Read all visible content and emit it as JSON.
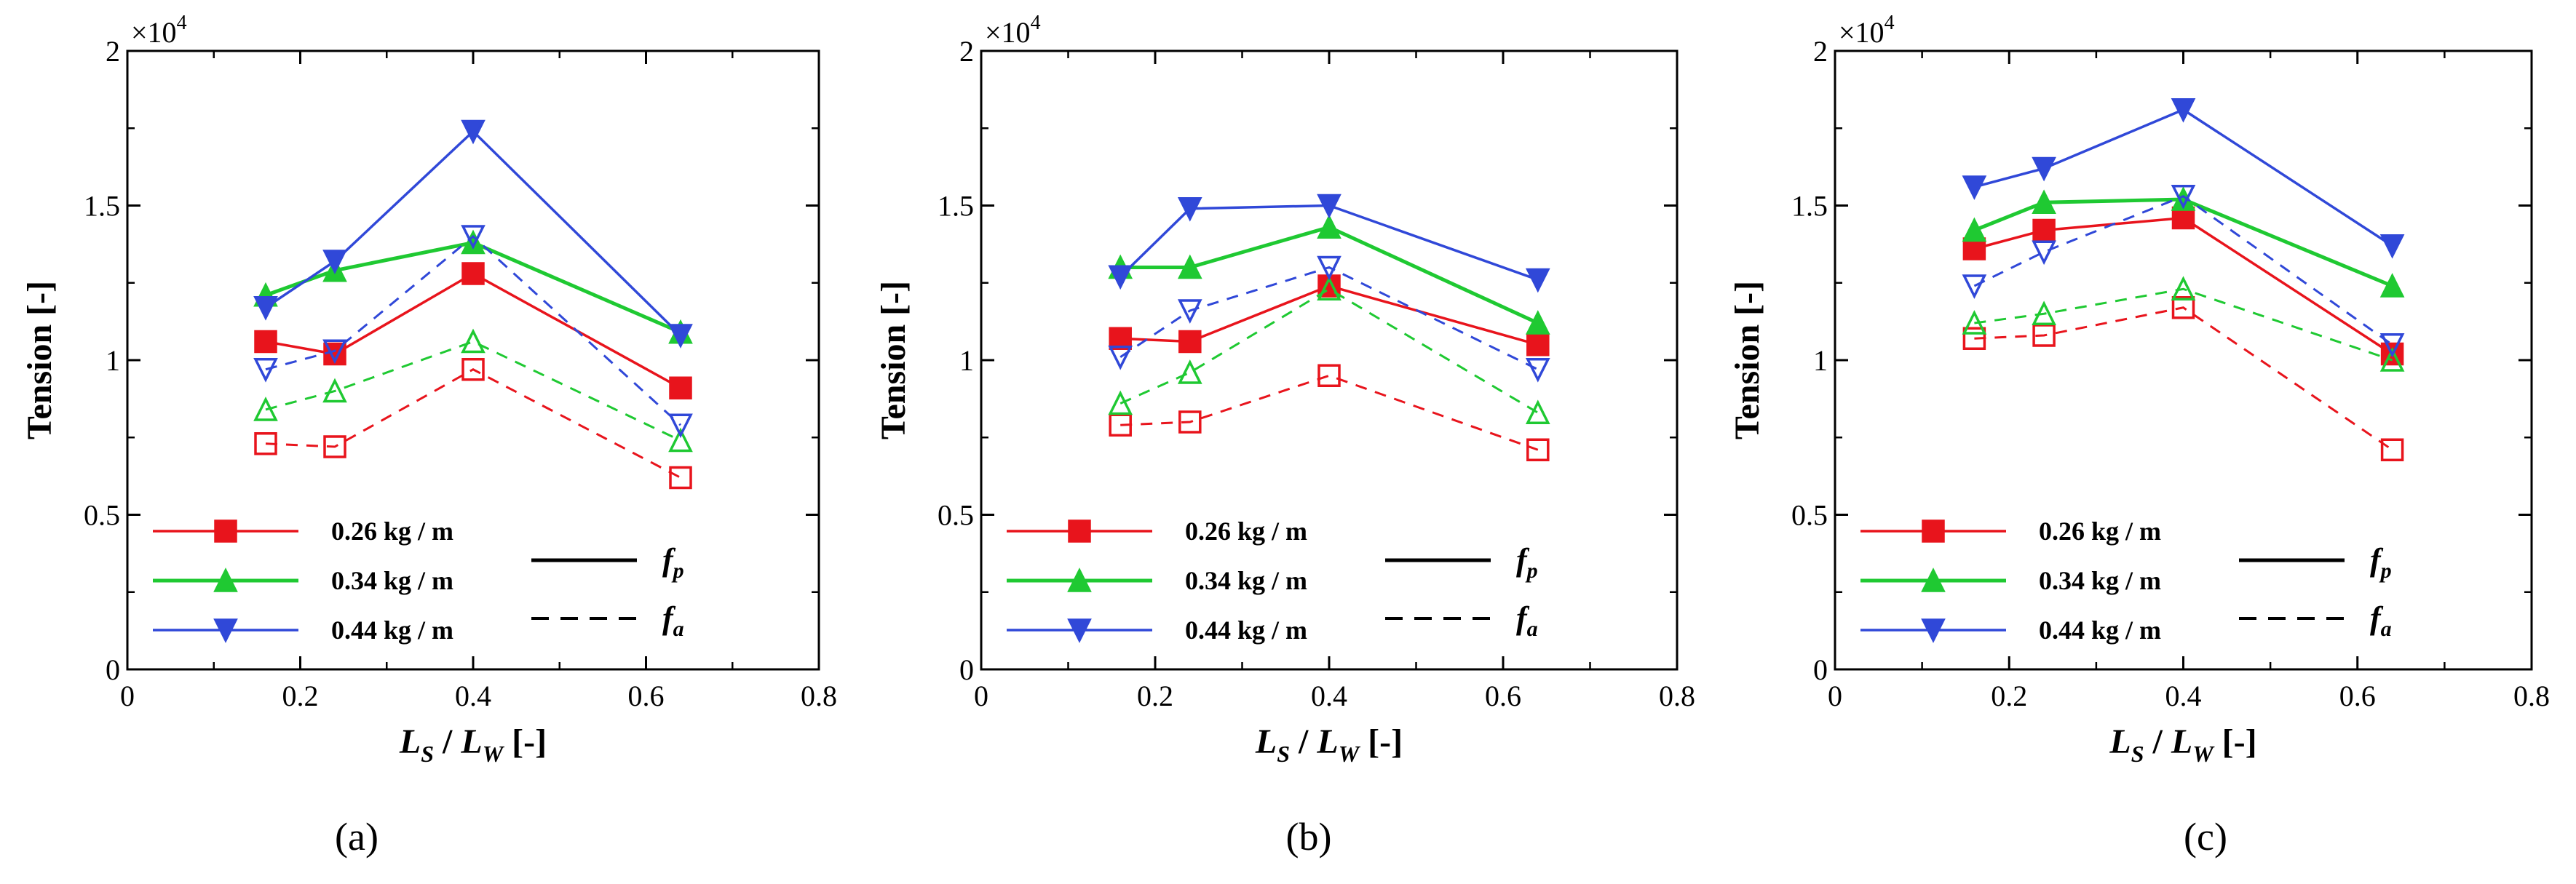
{
  "exponent_label": "×10",
  "exponent_power": "4",
  "x_axis_title": {
    "main1": "L",
    "sub1": "S",
    "mid": " / ",
    "main2": "L",
    "sub2": "W",
    "tail": " [-]"
  },
  "legend_labels": [
    "0.26 kg / m",
    "0.34 kg / m",
    "0.44 kg / m"
  ],
  "style_key": [
    {
      "main": "f",
      "sub": "p",
      "dash": false
    },
    {
      "main": "f",
      "sub": "a",
      "dash": true
    }
  ],
  "chart_data": [
    {
      "type": "line",
      "panel_label": "(a)",
      "xlabel": "LS / LW [-]",
      "ylabel": "Tension [-]",
      "xlim": [
        0,
        0.8
      ],
      "ylim": [
        0,
        2
      ],
      "y_scale": "×10^4",
      "xticks": [
        "0",
        "0.2",
        "0.4",
        "0.6",
        "0.8"
      ],
      "yticks": [
        "0",
        "0.5",
        "1",
        "1.5",
        "2"
      ],
      "x": [
        0.16,
        0.24,
        0.4,
        0.64
      ],
      "series": [
        {
          "name": "0.26 kg / m",
          "kind": "fp",
          "marker": "square",
          "color": "#e8141c",
          "values": [
            1.06,
            1.02,
            1.28,
            0.91
          ]
        },
        {
          "name": "0.34 kg / m",
          "kind": "fp",
          "marker": "triangle-up",
          "color": "#1fc932",
          "values": [
            1.21,
            1.29,
            1.38,
            1.09
          ]
        },
        {
          "name": "0.44 kg / m",
          "kind": "fp",
          "marker": "triangle-down",
          "color": "#3048d8",
          "values": [
            1.17,
            1.32,
            1.74,
            1.08
          ]
        },
        {
          "name": "0.26 kg / m",
          "kind": "fa",
          "marker": "square",
          "color": "#e8141c",
          "values": [
            0.73,
            0.72,
            0.97,
            0.62
          ]
        },
        {
          "name": "0.34 kg / m",
          "kind": "fa",
          "marker": "triangle-up",
          "color": "#1fc932",
          "values": [
            0.84,
            0.9,
            1.06,
            0.74
          ]
        },
        {
          "name": "0.44 kg / m",
          "kind": "fa",
          "marker": "triangle-down",
          "color": "#3048d8",
          "values": [
            0.97,
            1.03,
            1.4,
            0.79
          ]
        }
      ]
    },
    {
      "type": "line",
      "panel_label": "(b)",
      "xlabel": "LS / LW [-]",
      "ylabel": "Tension [-]",
      "xlim": [
        0,
        0.8
      ],
      "ylim": [
        0,
        2
      ],
      "y_scale": "×10^4",
      "xticks": [
        "0",
        "0.2",
        "0.4",
        "0.6",
        "0.8"
      ],
      "yticks": [
        "0",
        "0.5",
        "1",
        "1.5",
        "2"
      ],
      "x": [
        0.16,
        0.24,
        0.4,
        0.64
      ],
      "series": [
        {
          "name": "0.26 kg / m",
          "kind": "fp",
          "marker": "square",
          "color": "#e8141c",
          "values": [
            1.07,
            1.06,
            1.24,
            1.05
          ]
        },
        {
          "name": "0.34 kg / m",
          "kind": "fp",
          "marker": "triangle-up",
          "color": "#1fc932",
          "values": [
            1.3,
            1.3,
            1.43,
            1.12
          ]
        },
        {
          "name": "0.44 kg / m",
          "kind": "fp",
          "marker": "triangle-down",
          "color": "#3048d8",
          "values": [
            1.27,
            1.49,
            1.5,
            1.26
          ]
        },
        {
          "name": "0.26 kg / m",
          "kind": "fa",
          "marker": "square",
          "color": "#e8141c",
          "values": [
            0.79,
            0.8,
            0.95,
            0.71
          ]
        },
        {
          "name": "0.34 kg / m",
          "kind": "fa",
          "marker": "triangle-up",
          "color": "#1fc932",
          "values": [
            0.86,
            0.96,
            1.23,
            0.83
          ]
        },
        {
          "name": "0.44 kg / m",
          "kind": "fa",
          "marker": "triangle-down",
          "color": "#3048d8",
          "values": [
            1.01,
            1.16,
            1.3,
            0.97
          ]
        }
      ]
    },
    {
      "type": "line",
      "panel_label": "(c)",
      "xlabel": "LS / LW [-]",
      "ylabel": "Tension [-]",
      "xlim": [
        0,
        0.8
      ],
      "ylim": [
        0,
        2
      ],
      "y_scale": "×10^4",
      "xticks": [
        "0",
        "0.2",
        "0.4",
        "0.6",
        "0.8"
      ],
      "yticks": [
        "0",
        "0.5",
        "1",
        "1.5",
        "2"
      ],
      "x": [
        0.16,
        0.24,
        0.4,
        0.64
      ],
      "series": [
        {
          "name": "0.26 kg / m",
          "kind": "fp",
          "marker": "square",
          "color": "#e8141c",
          "values": [
            1.36,
            1.42,
            1.46,
            1.02
          ]
        },
        {
          "name": "0.34 kg / m",
          "kind": "fp",
          "marker": "triangle-up",
          "color": "#1fc932",
          "values": [
            1.42,
            1.51,
            1.52,
            1.24
          ]
        },
        {
          "name": "0.44 kg / m",
          "kind": "fp",
          "marker": "triangle-down",
          "color": "#3048d8",
          "values": [
            1.56,
            1.62,
            1.81,
            1.37
          ]
        },
        {
          "name": "0.26 kg / m",
          "kind": "fa",
          "marker": "square",
          "color": "#e8141c",
          "values": [
            1.07,
            1.08,
            1.17,
            0.71
          ]
        },
        {
          "name": "0.34 kg / m",
          "kind": "fa",
          "marker": "triangle-up",
          "color": "#1fc932",
          "values": [
            1.12,
            1.15,
            1.23,
            1.0
          ]
        },
        {
          "name": "0.44 kg / m",
          "kind": "fa",
          "marker": "triangle-down",
          "color": "#3048d8",
          "values": [
            1.24,
            1.35,
            1.53,
            1.05
          ]
        }
      ]
    }
  ]
}
